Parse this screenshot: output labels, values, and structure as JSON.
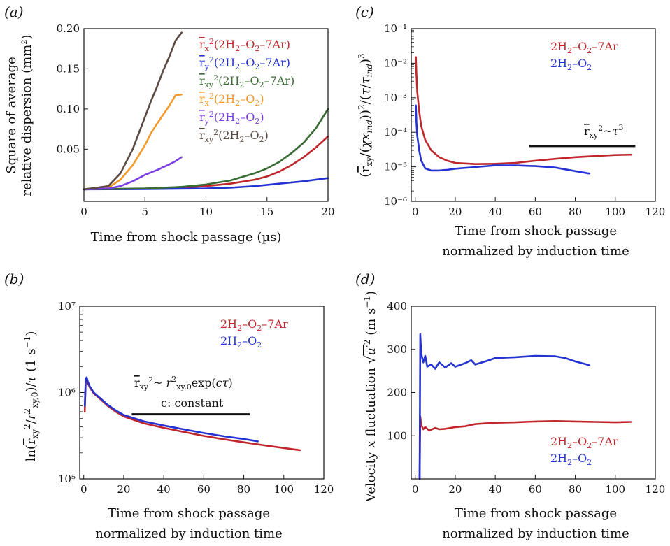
{
  "chart_data": [
    {
      "id": "a",
      "panel_label": "(a)",
      "type": "line",
      "xlabel": "Time from shock passage (µs)",
      "ylabel_lines": [
        "Square of average",
        "relative dispersion (mm²)"
      ],
      "xlim": [
        0,
        20
      ],
      "ylim": [
        -0.015,
        0.2
      ],
      "xticks": [
        0,
        5,
        10,
        15,
        20
      ],
      "yticks": [
        0.05,
        0.1,
        0.15,
        0.2
      ],
      "ytick_labels": [
        "0.05",
        "0.10",
        "0.15",
        "0.20"
      ],
      "series": [
        {
          "name": "r̅x²(2H₂–O₂–7Ar)",
          "color": "#c0272d",
          "x": [
            0,
            5,
            8,
            10,
            12,
            14,
            15,
            16,
            17,
            18,
            19,
            20
          ],
          "y": [
            0,
            0.0005,
            0.002,
            0.004,
            0.007,
            0.012,
            0.016,
            0.022,
            0.03,
            0.04,
            0.052,
            0.066
          ]
        },
        {
          "name": "r̅y²(2H₂–O₂–7Ar)",
          "color": "#2433d1",
          "x": [
            0,
            5,
            10,
            12,
            14,
            16,
            18,
            20
          ],
          "y": [
            0,
            0.0003,
            0.001,
            0.002,
            0.004,
            0.007,
            0.01,
            0.014
          ]
        },
        {
          "name": "r̅xy²(2H₂–O₂–7Ar)",
          "color": "#3a6b35",
          "x": [
            0,
            5,
            8,
            10,
            12,
            14,
            15,
            16,
            17,
            18,
            19,
            20
          ],
          "y": [
            0,
            0.001,
            0.003,
            0.006,
            0.011,
            0.02,
            0.026,
            0.034,
            0.045,
            0.058,
            0.076,
            0.1
          ]
        },
        {
          "name": "r̅x²(2H₂–O₂)",
          "color": "#f39a2b",
          "x": [
            0,
            2,
            3,
            4,
            5,
            5.5,
            6,
            6.5,
            7,
            7.5,
            8
          ],
          "y": [
            0,
            0.002,
            0.012,
            0.03,
            0.055,
            0.07,
            0.082,
            0.093,
            0.104,
            0.117,
            0.118
          ]
        },
        {
          "name": "r̅y²(2H₂–O₂)",
          "color": "#7b3fe4",
          "x": [
            0,
            2,
            3,
            4,
            5,
            6,
            7,
            7.5,
            8
          ],
          "y": [
            0,
            0.001,
            0.004,
            0.01,
            0.018,
            0.024,
            0.031,
            0.035,
            0.04
          ]
        },
        {
          "name": "r̅xy²(2H₂–O₂)",
          "color": "#5a4a42",
          "x": [
            0,
            2,
            3,
            4,
            5,
            5.5,
            6,
            6.5,
            7,
            7.5,
            8
          ],
          "y": [
            0,
            0.004,
            0.02,
            0.05,
            0.09,
            0.11,
            0.128,
            0.148,
            0.165,
            0.185,
            0.195
          ]
        }
      ]
    },
    {
      "id": "b",
      "panel_label": "(b)",
      "type": "line",
      "xlabel_lines": [
        "Time from shock passage",
        "normalized by induction time"
      ],
      "ylabel": "ln(r̅xy²/r²xy,0)/τ (1 s⁻¹)",
      "yscale": "log",
      "xlim": [
        -2,
        120
      ],
      "ylim": [
        100000,
        10000000
      ],
      "xticks": [
        0,
        20,
        40,
        60,
        80,
        100,
        120
      ],
      "ytick_labels": [
        "10⁵",
        "10⁶",
        "10⁷"
      ],
      "annotation": {
        "formula": "r̅xy²~ r²xy,0exp(cτ)",
        "note": "c: constant",
        "x": [
          24,
          83
        ],
        "y": 560000
      },
      "series": [
        {
          "name": "2H₂–O₂–7Ar",
          "color": "#c0272d",
          "x": [
            0.5,
            1,
            1.5,
            2,
            3,
            5,
            8,
            12,
            16,
            20,
            30,
            40,
            50,
            60,
            70,
            80,
            90,
            100,
            108
          ],
          "y": [
            600000,
            1350000,
            1420000,
            1300000,
            1150000,
            980000,
            850000,
            700000,
            600000,
            530000,
            440000,
            390000,
            350000,
            315000,
            288000,
            265000,
            245000,
            228000,
            215000
          ]
        },
        {
          "name": "2H₂–O₂",
          "color": "#2433d1",
          "x": [
            0.5,
            1,
            1.5,
            2,
            3,
            5,
            8,
            12,
            16,
            20,
            30,
            40,
            50,
            60,
            70,
            80,
            87
          ],
          "y": [
            700000,
            1450000,
            1500000,
            1350000,
            1180000,
            1000000,
            870000,
            720000,
            620000,
            550000,
            465000,
            415000,
            375000,
            340000,
            312000,
            290000,
            272000
          ]
        }
      ]
    },
    {
      "id": "c",
      "panel_label": "(c)",
      "type": "line",
      "xlabel_lines": [
        "Time from shock passage",
        "normalized by induction time"
      ],
      "ylabel": "(r̅xy/(χxind))²/(τ/τind)³",
      "yscale": "log",
      "xlim": [
        -2,
        120
      ],
      "ylim": [
        1e-06,
        0.1
      ],
      "xticks": [
        0,
        20,
        40,
        60,
        80,
        100,
        120
      ],
      "ytick_labels": [
        "10⁻⁶",
        "10⁻⁵",
        "10⁻⁴",
        "10⁻³",
        "10⁻²",
        "10⁻¹"
      ],
      "annotation": {
        "formula": "r̅xy²~τ³",
        "x": [
          57,
          110
        ],
        "y": 4e-05
      },
      "series": [
        {
          "name": "2H₂–O₂–7Ar",
          "color": "#c0272d",
          "x": [
            0.3,
            0.6,
            1,
            2,
            3,
            5,
            8,
            12,
            16,
            20,
            30,
            40,
            50,
            60,
            70,
            80,
            90,
            100,
            108
          ],
          "y": [
            0.015,
            0.005,
            0.0015,
            0.0004,
            0.00015,
            6e-05,
            3e-05,
            1.9e-05,
            1.5e-05,
            1.3e-05,
            1.2e-05,
            1.22e-05,
            1.3e-05,
            1.5e-05,
            1.7e-05,
            1.9e-05,
            2.05e-05,
            2.2e-05,
            2.25e-05
          ]
        },
        {
          "name": "2H₂–O₂",
          "color": "#2433d1",
          "x": [
            0.3,
            0.6,
            1,
            2,
            3,
            5,
            8,
            12,
            16,
            20,
            30,
            40,
            50,
            60,
            70,
            80,
            87
          ],
          "y": [
            0.0006,
            0.0002,
            8e-05,
            3e-05,
            1.5e-05,
            9e-06,
            7.8e-06,
            7.8e-06,
            8.2e-06,
            8.8e-06,
            9.8e-06,
            1.1e-05,
            1.1e-05,
            1.05e-05,
            9.5e-06,
            7.5e-06,
            6.4e-06
          ]
        }
      ]
    },
    {
      "id": "d",
      "panel_label": "(d)",
      "type": "line",
      "xlabel_lines": [
        "Time from shock passage",
        "normalized by induction time"
      ],
      "ylabel": "Velocity x fluctuation √u′² (m s⁻¹)",
      "xlim": [
        -2,
        120
      ],
      "ylim": [
        0,
        400
      ],
      "xticks": [
        0,
        20,
        40,
        60,
        80,
        100,
        120
      ],
      "yticks": [
        100,
        200,
        300,
        400
      ],
      "series": [
        {
          "name": "2H₂–O₂–7Ar",
          "color": "#c0272d",
          "x": [
            2.2,
            2.5,
            3,
            4,
            5,
            7,
            10,
            12,
            15,
            20,
            25,
            30,
            40,
            50,
            60,
            70,
            80,
            90,
            100,
            108
          ],
          "y": [
            0,
            145,
            125,
            115,
            120,
            112,
            118,
            115,
            116,
            120,
            122,
            127,
            130,
            131,
            133,
            134,
            133,
            132,
            131,
            132
          ]
        },
        {
          "name": "2H₂–O₂",
          "color": "#2433d1",
          "x": [
            2.2,
            2.5,
            3,
            4,
            5,
            6,
            8,
            10,
            12,
            15,
            18,
            20,
            25,
            28,
            30,
            35,
            40,
            50,
            60,
            70,
            75,
            80,
            85,
            87
          ],
          "y": [
            0,
            335,
            290,
            270,
            285,
            260,
            265,
            255,
            270,
            258,
            268,
            260,
            268,
            275,
            265,
            272,
            280,
            282,
            285,
            284,
            280,
            272,
            266,
            263
          ]
        }
      ]
    }
  ]
}
